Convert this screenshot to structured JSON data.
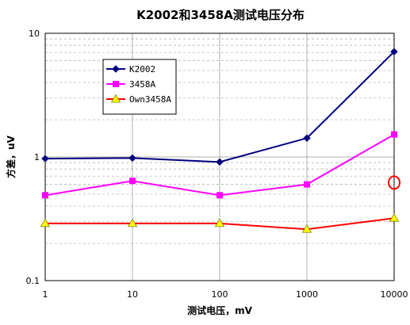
{
  "chart_data": {
    "type": "line",
    "title": "K2002和3458A测试电压分布",
    "xlabel": "测试电压，mV",
    "ylabel": "方差，uV",
    "x_scale": "log",
    "y_scale": "log",
    "xlim": [
      1,
      10000
    ],
    "ylim": [
      0.1,
      10
    ],
    "x_ticks": [
      "1",
      "10",
      "100",
      "1000",
      "10000"
    ],
    "y_ticks": [
      "0.1",
      "1",
      "10"
    ],
    "grid": true,
    "legend_position": "top-left",
    "x": [
      1,
      10,
      100,
      1000,
      10000
    ],
    "series": [
      {
        "name": "K2002",
        "color": "#000080",
        "marker": "diamond",
        "values": [
          0.97,
          0.98,
          0.91,
          1.42,
          7.1
        ]
      },
      {
        "name": "3458A",
        "color": "#ff00ff",
        "marker": "square",
        "values": [
          0.49,
          0.64,
          0.49,
          0.6,
          1.52
        ]
      },
      {
        "name": "Own3458A",
        "color": "#ff0000",
        "marker": "triangle",
        "marker_fill": "#ffff00",
        "values": [
          0.29,
          0.29,
          0.29,
          0.26,
          0.32
        ]
      }
    ],
    "annotations": [
      {
        "shape": "circle",
        "color": "#ff0000",
        "x": 10000,
        "y": 0.62
      }
    ]
  }
}
